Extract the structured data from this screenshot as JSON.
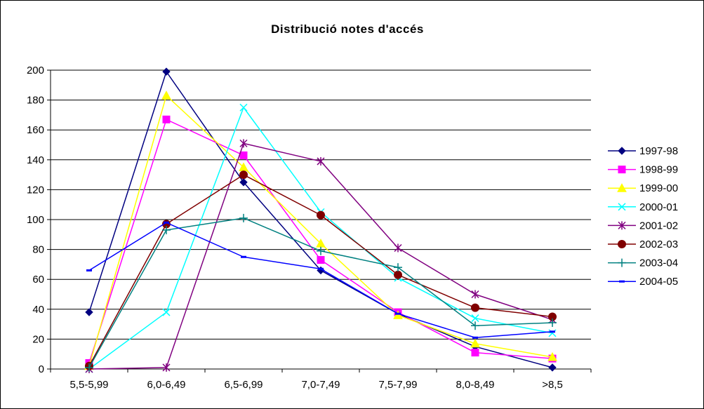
{
  "chart_data": {
    "type": "line",
    "title": "Distribució notes d'accés",
    "xlabel": "",
    "ylabel": "",
    "categories": [
      "5,5-5,99",
      "6,0-6,49",
      "6,5-6,99",
      "7,0-7,49",
      "7,5-7,99",
      "8,0-8,49",
      ">8,5"
    ],
    "ylim": [
      0,
      200
    ],
    "yticks": [
      0,
      20,
      40,
      60,
      80,
      100,
      120,
      140,
      160,
      180,
      200
    ],
    "grid": "horizontal",
    "legend_position": "right",
    "series": [
      {
        "name": "1997-98",
        "color": "#000080",
        "marker": "diamond",
        "values": [
          38,
          199,
          125,
          66,
          37,
          15,
          1
        ]
      },
      {
        "name": "1998-99",
        "color": "#ff00ff",
        "marker": "square",
        "values": [
          4,
          167,
          143,
          73,
          38,
          11,
          7
        ]
      },
      {
        "name": "1999-00",
        "color": "#ffff00",
        "marker": "triangle",
        "values": [
          2,
          183,
          135,
          84,
          36,
          17,
          8
        ]
      },
      {
        "name": "2000-01",
        "color": "#00ffff",
        "marker": "x",
        "values": [
          0,
          38,
          175,
          105,
          61,
          34,
          24
        ]
      },
      {
        "name": "2001-02",
        "color": "#800080",
        "marker": "star",
        "values": [
          0,
          1,
          151,
          139,
          81,
          50,
          33
        ]
      },
      {
        "name": "2002-03",
        "color": "#800000",
        "marker": "circle",
        "values": [
          2,
          97,
          130,
          103,
          63,
          41,
          35
        ]
      },
      {
        "name": "2003-04",
        "color": "#008080",
        "marker": "plus",
        "values": [
          1,
          93,
          101,
          79,
          68,
          29,
          31
        ]
      },
      {
        "name": "2004-05",
        "color": "#0000ff",
        "marker": "dash",
        "values": [
          66,
          98,
          75,
          67,
          37,
          21,
          25
        ]
      }
    ]
  }
}
